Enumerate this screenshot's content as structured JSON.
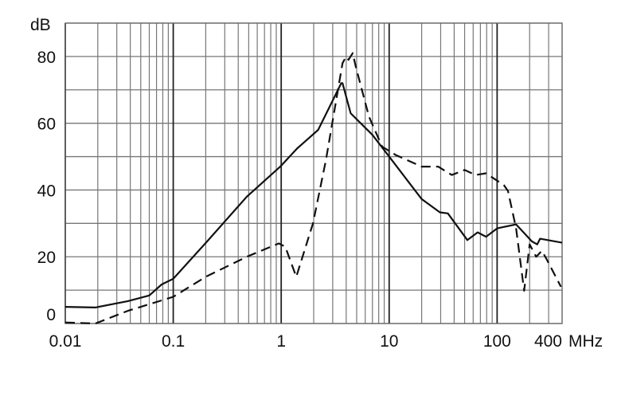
{
  "chart_data": {
    "type": "line",
    "ylabel": "dB",
    "xunit": "MHz",
    "xscale": "log",
    "xlim": [
      0.01,
      400
    ],
    "ylim": [
      0,
      90
    ],
    "grid": true,
    "legend": "none",
    "xticks": [
      {
        "value": 0.01,
        "label": "0.01"
      },
      {
        "value": 0.1,
        "label": "0.1"
      },
      {
        "value": 1,
        "label": "1"
      },
      {
        "value": 10,
        "label": "10"
      },
      {
        "value": 100,
        "label": "100"
      },
      {
        "value": 400,
        "label": "400"
      }
    ],
    "yticks": [
      {
        "value": 0,
        "label": "0"
      },
      {
        "value": 20,
        "label": "20"
      },
      {
        "value": 40,
        "label": "40"
      },
      {
        "value": 60,
        "label": "60"
      },
      {
        "value": 80,
        "label": "80"
      }
    ],
    "series": [
      {
        "style": "solid",
        "color": "#111111",
        "x": [
          0.01,
          0.019,
          0.038,
          0.06,
          0.078,
          0.1,
          0.206,
          0.48,
          0.98,
          1.4,
          2.2,
          3.6,
          3.7,
          4.4,
          7.0,
          10,
          20,
          29.5,
          35,
          53,
          66,
          79,
          100,
          150,
          210,
          235,
          250,
          400
        ],
        "y": [
          5,
          4.8,
          6.7,
          8.4,
          11.7,
          13.4,
          24.6,
          38,
          47,
          52.4,
          58,
          72,
          72,
          63,
          56.5,
          50,
          37.3,
          33.3,
          33,
          25,
          27.3,
          26,
          28.5,
          29.7,
          24.6,
          23.7,
          25.4,
          24.2
        ]
      },
      {
        "style": "dashed",
        "color": "#111111",
        "x": [
          0.01,
          0.019,
          0.038,
          0.1,
          0.2,
          0.48,
          0.95,
          1.09,
          1.38,
          1.97,
          2.6,
          3.7,
          4.0,
          4.2,
          4.6,
          4.9,
          6.5,
          8.6,
          11.5,
          20,
          28.5,
          38,
          50,
          63,
          79,
          116,
          126,
          150,
          178,
          200,
          230,
          260,
          290,
          390
        ],
        "y": [
          0.3,
          0,
          3.8,
          8,
          14,
          20,
          24,
          23,
          14,
          30,
          49,
          78,
          80,
          79,
          81,
          77,
          62,
          53,
          50.5,
          47,
          47,
          44.5,
          46,
          44.5,
          45,
          41.4,
          39.7,
          28.5,
          9.8,
          23.7,
          20,
          21.8,
          19,
          11
        ]
      }
    ]
  }
}
